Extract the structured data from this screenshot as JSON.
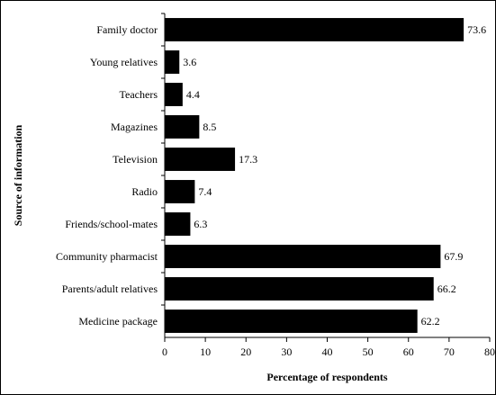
{
  "chart_data": {
    "type": "bar",
    "orientation": "horizontal",
    "categories": [
      "Family doctor",
      "Young relatives",
      "Teachers",
      "Magazines",
      "Television",
      "Radio",
      "Friends/school-mates",
      "Community pharmacist",
      "Parents/adult relatives",
      "Medicine package"
    ],
    "values": [
      73.6,
      3.6,
      4.4,
      8.5,
      17.3,
      7.4,
      6.3,
      67.9,
      66.2,
      62.2
    ],
    "value_labels": [
      "73.6",
      "3.6",
      "4.4",
      "8.5",
      "17.3",
      "7.4",
      "6.3",
      "67.9",
      "66.2",
      "62.2"
    ],
    "xlabel": "Percentage of respondents",
    "ylabel": "Source of information",
    "xlim": [
      0,
      80
    ],
    "xticks": [
      0,
      10,
      20,
      30,
      40,
      50,
      60,
      70,
      80
    ],
    "grid": false,
    "bar_color": "#000000"
  }
}
